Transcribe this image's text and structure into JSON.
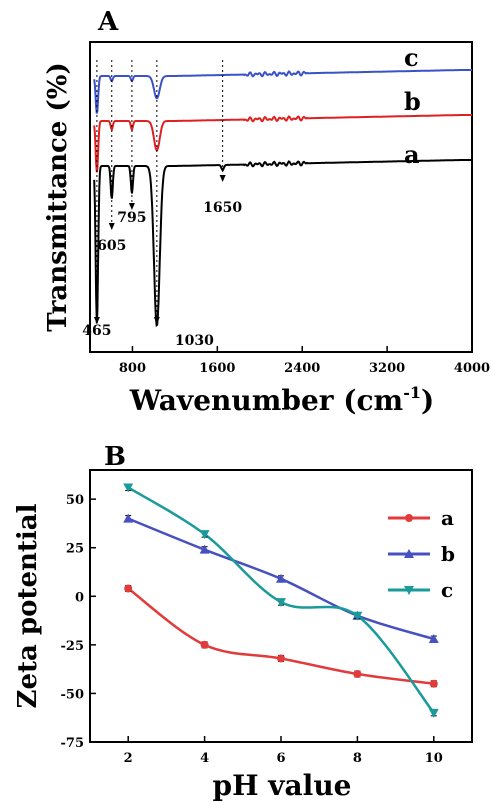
{
  "chart_data": [
    {
      "panel": "A",
      "type": "line",
      "xlabel": "Wavenumber (cm",
      "xlabel_sup": "-1",
      "xlabel_end": ")",
      "ylabel": "Transmittance (%)",
      "xlim": [
        400,
        4000
      ],
      "xticks": [
        800,
        1600,
        2400,
        3200,
        4000
      ],
      "series": [
        {
          "name": "a",
          "color": "#000000",
          "offset": 0.0,
          "dips": [
            [
              465,
              0.92
            ],
            [
              605,
              0.19
            ],
            [
              795,
              0.16
            ],
            [
              1030,
              0.93
            ],
            [
              1650,
              0.03
            ]
          ]
        },
        {
          "name": "b",
          "color": "#e02020",
          "offset": 0.0,
          "dips": [
            [
              465,
              0.3
            ],
            [
              605,
              0.05
            ],
            [
              795,
              0.05
            ],
            [
              1030,
              0.17
            ],
            [
              1650,
              0.0
            ]
          ]
        },
        {
          "name": "c",
          "color": "#3a52c8",
          "offset": 0.0,
          "dips": [
            [
              465,
              0.22
            ],
            [
              605,
              0.03
            ],
            [
              795,
              0.03
            ],
            [
              1030,
              0.13
            ],
            [
              1650,
              0.0
            ]
          ]
        }
      ],
      "annotations": [
        {
          "text": "465",
          "x": 465
        },
        {
          "text": "605",
          "x": 605
        },
        {
          "text": "795",
          "x": 795
        },
        {
          "text": "1030",
          "x": 1030
        },
        {
          "text": "1650",
          "x": 1650
        }
      ]
    },
    {
      "panel": "B",
      "type": "line",
      "xlabel": "pH value",
      "ylabel": "Zeta potential",
      "xlim": [
        1,
        11
      ],
      "ylim": [
        -75,
        65
      ],
      "xticks": [
        2,
        4,
        6,
        8,
        10
      ],
      "yticks": [
        -75,
        -50,
        -25,
        0,
        25,
        50
      ],
      "legend": "top-right",
      "series": [
        {
          "name": "a",
          "color": "#e23b3b",
          "marker": "circle",
          "x": [
            2,
            4,
            6,
            8,
            10
          ],
          "y": [
            4,
            -25,
            -32,
            -40,
            -45
          ]
        },
        {
          "name": "b",
          "color": "#4650c0",
          "marker": "triangle",
          "x": [
            2,
            4,
            6,
            8,
            10
          ],
          "y": [
            40,
            24,
            9,
            -10,
            -22
          ]
        },
        {
          "name": "c",
          "color": "#1a9a9a",
          "marker": "triangle-down",
          "x": [
            2,
            4,
            6,
            8,
            10
          ],
          "y": [
            56,
            32,
            -3,
            -10,
            -60
          ]
        }
      ]
    }
  ]
}
